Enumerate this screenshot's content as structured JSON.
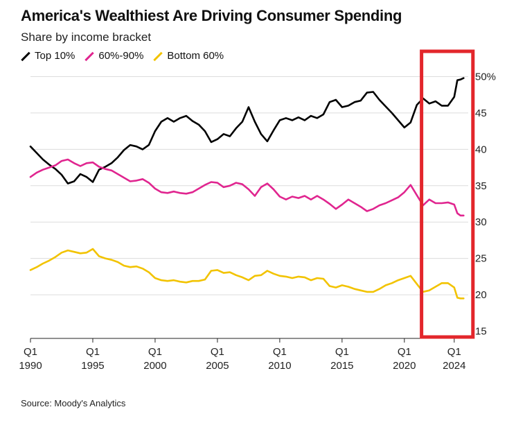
{
  "header": {
    "title": "America's Wealthiest Are Driving Consumer Spending",
    "subtitle": "Share by income bracket"
  },
  "legend": [
    {
      "label": "Top 10%",
      "color": "#000000"
    },
    {
      "label": "60%-90%",
      "color": "#e0258f"
    },
    {
      "label": "Bottom 60%",
      "color": "#f2c300"
    }
  ],
  "source": "Source: Moody's Analytics",
  "highlight": {
    "color": "#e3262b",
    "from_year": 2021.6,
    "to_year": 2025.5
  },
  "chart_data": {
    "type": "line",
    "title": "America's Wealthiest Are Driving Consumer Spending",
    "subtitle": "Share by income bracket",
    "xlabel": "",
    "ylabel": "",
    "xlim": [
      1990,
      2024.9
    ],
    "ylim": [
      14,
      51
    ],
    "yticks": [
      {
        "value": 15,
        "label": "15"
      },
      {
        "value": 20,
        "label": "20"
      },
      {
        "value": 25,
        "label": "25"
      },
      {
        "value": 30,
        "label": "30"
      },
      {
        "value": 35,
        "label": "35"
      },
      {
        "value": 40,
        "label": "40"
      },
      {
        "value": 45,
        "label": "45"
      },
      {
        "value": 50,
        "label": "50%"
      }
    ],
    "xticks": [
      {
        "value": 1990,
        "q": "Q1",
        "year": "1990"
      },
      {
        "value": 1995,
        "q": "Q1",
        "year": "1995"
      },
      {
        "value": 2000,
        "q": "Q1",
        "year": "2000"
      },
      {
        "value": 2005,
        "q": "Q1",
        "year": "2005"
      },
      {
        "value": 2010,
        "q": "Q1",
        "year": "2010"
      },
      {
        "value": 2015,
        "q": "Q1",
        "year": "2015"
      },
      {
        "value": 2020,
        "q": "Q1",
        "year": "2020"
      },
      {
        "value": 2024,
        "q": "Q1",
        "year": "2024"
      }
    ],
    "grid": true,
    "legend_position": "top-left",
    "series": [
      {
        "name": "Top 10%",
        "color": "#000000",
        "points": [
          [
            1990,
            40.4
          ],
          [
            1990.5,
            39.5
          ],
          [
            1991,
            38.6
          ],
          [
            1991.5,
            37.9
          ],
          [
            1992,
            37.3
          ],
          [
            1992.5,
            36.5
          ],
          [
            1993,
            35.3
          ],
          [
            1993.5,
            35.6
          ],
          [
            1994,
            36.6
          ],
          [
            1994.5,
            36.2
          ],
          [
            1995,
            35.5
          ],
          [
            1995.5,
            37.2
          ],
          [
            1996,
            37.6
          ],
          [
            1996.5,
            38.1
          ],
          [
            1997,
            38.9
          ],
          [
            1997.5,
            39.9
          ],
          [
            1998,
            40.6
          ],
          [
            1998.5,
            40.4
          ],
          [
            1999,
            40.0
          ],
          [
            1999.5,
            40.6
          ],
          [
            2000,
            42.5
          ],
          [
            2000.5,
            43.8
          ],
          [
            2001,
            44.3
          ],
          [
            2001.5,
            43.8
          ],
          [
            2002,
            44.3
          ],
          [
            2002.5,
            44.6
          ],
          [
            2003,
            43.9
          ],
          [
            2003.5,
            43.4
          ],
          [
            2004,
            42.5
          ],
          [
            2004.5,
            41.0
          ],
          [
            2005,
            41.4
          ],
          [
            2005.5,
            42.1
          ],
          [
            2006,
            41.8
          ],
          [
            2006.5,
            42.9
          ],
          [
            2007,
            43.8
          ],
          [
            2007.5,
            45.8
          ],
          [
            2008,
            43.8
          ],
          [
            2008.5,
            42.1
          ],
          [
            2009,
            41.1
          ],
          [
            2009.5,
            42.6
          ],
          [
            2010,
            44.0
          ],
          [
            2010.5,
            44.3
          ],
          [
            2011,
            44.0
          ],
          [
            2011.5,
            44.4
          ],
          [
            2012,
            44.0
          ],
          [
            2012.5,
            44.6
          ],
          [
            2013,
            44.3
          ],
          [
            2013.5,
            44.8
          ],
          [
            2014,
            46.5
          ],
          [
            2014.5,
            46.8
          ],
          [
            2015,
            45.8
          ],
          [
            2015.5,
            46.0
          ],
          [
            2016,
            46.5
          ],
          [
            2016.5,
            46.7
          ],
          [
            2017,
            47.8
          ],
          [
            2017.5,
            47.9
          ],
          [
            2018,
            46.8
          ],
          [
            2018.5,
            45.9
          ],
          [
            2019,
            45.0
          ],
          [
            2019.5,
            44.0
          ],
          [
            2020,
            43.0
          ],
          [
            2020.5,
            43.7
          ],
          [
            2021,
            46.1
          ],
          [
            2021.5,
            47.0
          ],
          [
            2022,
            46.3
          ],
          [
            2022.5,
            46.6
          ],
          [
            2023,
            46.0
          ],
          [
            2023.5,
            46.0
          ],
          [
            2024,
            47.2
          ],
          [
            2024.25,
            49.5
          ],
          [
            2024.5,
            49.6
          ],
          [
            2024.75,
            49.8
          ]
        ]
      },
      {
        "name": "60%-90%",
        "color": "#e0258f",
        "points": [
          [
            1990,
            36.2
          ],
          [
            1990.5,
            36.8
          ],
          [
            1991,
            37.2
          ],
          [
            1991.5,
            37.5
          ],
          [
            1992,
            37.8
          ],
          [
            1992.5,
            38.4
          ],
          [
            1993,
            38.6
          ],
          [
            1993.5,
            38.1
          ],
          [
            1994,
            37.7
          ],
          [
            1994.5,
            38.1
          ],
          [
            1995,
            38.2
          ],
          [
            1995.5,
            37.6
          ],
          [
            1996,
            37.3
          ],
          [
            1996.5,
            37.1
          ],
          [
            1997,
            36.6
          ],
          [
            1997.5,
            36.1
          ],
          [
            1998,
            35.6
          ],
          [
            1998.5,
            35.7
          ],
          [
            1999,
            35.9
          ],
          [
            1999.5,
            35.4
          ],
          [
            2000,
            34.6
          ],
          [
            2000.5,
            34.1
          ],
          [
            2001,
            34.0
          ],
          [
            2001.5,
            34.2
          ],
          [
            2002,
            34.0
          ],
          [
            2002.5,
            33.9
          ],
          [
            2003,
            34.1
          ],
          [
            2003.5,
            34.6
          ],
          [
            2004,
            35.1
          ],
          [
            2004.5,
            35.5
          ],
          [
            2005,
            35.4
          ],
          [
            2005.5,
            34.8
          ],
          [
            2006,
            35.0
          ],
          [
            2006.5,
            35.4
          ],
          [
            2007,
            35.2
          ],
          [
            2007.5,
            34.5
          ],
          [
            2008,
            33.6
          ],
          [
            2008.5,
            34.8
          ],
          [
            2009,
            35.3
          ],
          [
            2009.5,
            34.5
          ],
          [
            2010,
            33.5
          ],
          [
            2010.5,
            33.1
          ],
          [
            2011,
            33.5
          ],
          [
            2011.5,
            33.3
          ],
          [
            2012,
            33.6
          ],
          [
            2012.5,
            33.1
          ],
          [
            2013,
            33.6
          ],
          [
            2013.5,
            33.1
          ],
          [
            2014,
            32.5
          ],
          [
            2014.5,
            31.8
          ],
          [
            2015,
            32.4
          ],
          [
            2015.5,
            33.1
          ],
          [
            2016,
            32.6
          ],
          [
            2016.5,
            32.1
          ],
          [
            2017,
            31.5
          ],
          [
            2017.5,
            31.8
          ],
          [
            2018,
            32.3
          ],
          [
            2018.5,
            32.6
          ],
          [
            2019,
            33.0
          ],
          [
            2019.5,
            33.4
          ],
          [
            2020,
            34.1
          ],
          [
            2020.5,
            35.1
          ],
          [
            2021,
            33.7
          ],
          [
            2021.5,
            32.3
          ],
          [
            2022,
            33.1
          ],
          [
            2022.5,
            32.6
          ],
          [
            2023,
            32.6
          ],
          [
            2023.5,
            32.7
          ],
          [
            2024,
            32.4
          ],
          [
            2024.25,
            31.2
          ],
          [
            2024.5,
            30.9
          ],
          [
            2024.75,
            30.9
          ]
        ]
      },
      {
        "name": "Bottom 60%",
        "color": "#f2c300",
        "points": [
          [
            1990,
            23.4
          ],
          [
            1990.5,
            23.8
          ],
          [
            1991,
            24.3
          ],
          [
            1991.5,
            24.7
          ],
          [
            1992,
            25.2
          ],
          [
            1992.5,
            25.8
          ],
          [
            1993,
            26.1
          ],
          [
            1993.5,
            25.9
          ],
          [
            1994,
            25.7
          ],
          [
            1994.5,
            25.8
          ],
          [
            1995,
            26.3
          ],
          [
            1995.5,
            25.3
          ],
          [
            1996,
            25.0
          ],
          [
            1996.5,
            24.8
          ],
          [
            1997,
            24.5
          ],
          [
            1997.5,
            24.0
          ],
          [
            1998,
            23.8
          ],
          [
            1998.5,
            23.9
          ],
          [
            1999,
            23.6
          ],
          [
            1999.5,
            23.1
          ],
          [
            2000,
            22.3
          ],
          [
            2000.5,
            22.0
          ],
          [
            2001,
            21.9
          ],
          [
            2001.5,
            22.0
          ],
          [
            2002,
            21.8
          ],
          [
            2002.5,
            21.7
          ],
          [
            2003,
            21.9
          ],
          [
            2003.5,
            21.9
          ],
          [
            2004,
            22.1
          ],
          [
            2004.5,
            23.3
          ],
          [
            2005,
            23.4
          ],
          [
            2005.5,
            23.0
          ],
          [
            2006,
            23.1
          ],
          [
            2006.5,
            22.7
          ],
          [
            2007,
            22.4
          ],
          [
            2007.5,
            22.0
          ],
          [
            2008,
            22.6
          ],
          [
            2008.5,
            22.7
          ],
          [
            2009,
            23.3
          ],
          [
            2009.5,
            22.9
          ],
          [
            2010,
            22.6
          ],
          [
            2010.5,
            22.5
          ],
          [
            2011,
            22.3
          ],
          [
            2011.5,
            22.5
          ],
          [
            2012,
            22.4
          ],
          [
            2012.5,
            22.0
          ],
          [
            2013,
            22.3
          ],
          [
            2013.5,
            22.2
          ],
          [
            2014,
            21.2
          ],
          [
            2014.5,
            21.0
          ],
          [
            2015,
            21.3
          ],
          [
            2015.5,
            21.1
          ],
          [
            2016,
            20.8
          ],
          [
            2016.5,
            20.6
          ],
          [
            2017,
            20.4
          ],
          [
            2017.5,
            20.4
          ],
          [
            2018,
            20.8
          ],
          [
            2018.5,
            21.3
          ],
          [
            2019,
            21.6
          ],
          [
            2019.5,
            22.0
          ],
          [
            2020,
            22.3
          ],
          [
            2020.5,
            22.6
          ],
          [
            2021,
            21.5
          ],
          [
            2021.5,
            20.4
          ],
          [
            2022,
            20.6
          ],
          [
            2022.5,
            21.1
          ],
          [
            2023,
            21.6
          ],
          [
            2023.5,
            21.6
          ],
          [
            2024,
            21.0
          ],
          [
            2024.25,
            19.6
          ],
          [
            2024.5,
            19.5
          ],
          [
            2024.75,
            19.5
          ]
        ]
      }
    ]
  }
}
